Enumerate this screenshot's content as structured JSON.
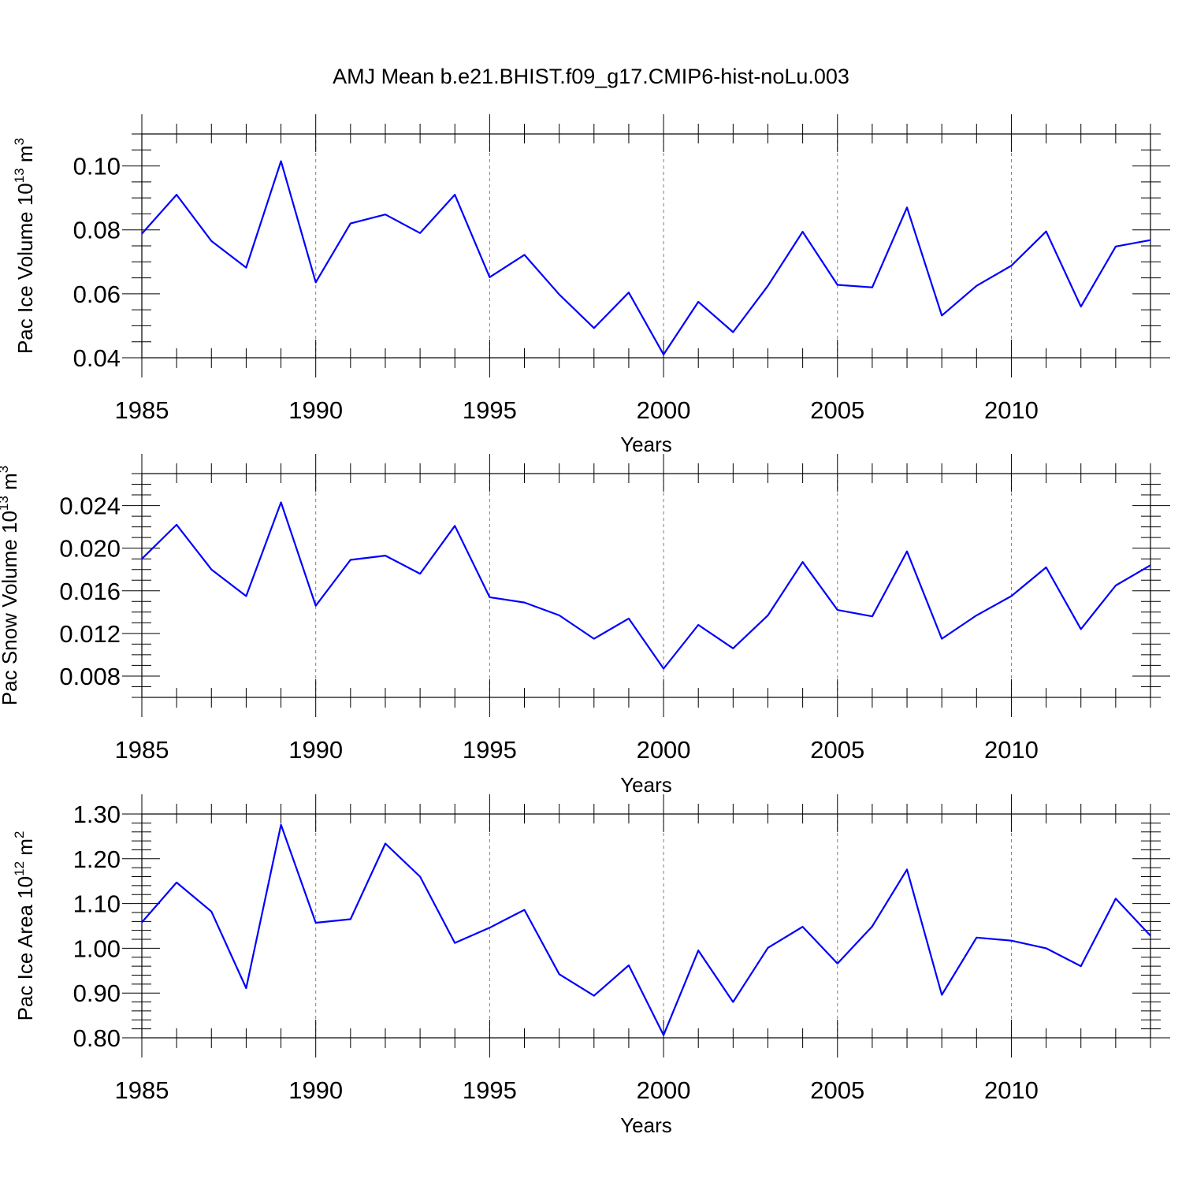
{
  "page": {
    "title": "AMJ Mean b.e21.BHIST.f09_g17.CMIP6-hist-noLu.003",
    "line_color": "#0000ff"
  },
  "chart_data": [
    {
      "type": "line",
      "ylabel": "Pac Ice Volume 10",
      "ylabel_exp": "13",
      "ylabel_unit": " m",
      "ylabel_unit_exp": "3",
      "xlabel": "Years",
      "xlim": [
        1985,
        2014
      ],
      "ylim": [
        0.04,
        0.11
      ],
      "xticks": [
        1985,
        1990,
        1995,
        2000,
        2005,
        2010
      ],
      "xtick_labels": [
        "1985",
        "1990",
        "1995",
        "2000",
        "2005",
        "2010"
      ],
      "yticks": [
        0.04,
        0.06,
        0.08,
        0.1
      ],
      "ytick_labels": [
        "0.04",
        "0.06",
        "0.08",
        "0.10"
      ],
      "y_minor_step": 0.005,
      "x": [
        1985,
        1986,
        1987,
        1988,
        1989,
        1990,
        1991,
        1992,
        1993,
        1994,
        1995,
        1996,
        1997,
        1998,
        1999,
        2000,
        2001,
        2002,
        2003,
        2004,
        2005,
        2006,
        2007,
        2008,
        2009,
        2010,
        2011,
        2012,
        2013,
        2014
      ],
      "values": [
        0.0788,
        0.091,
        0.0765,
        0.0682,
        0.1015,
        0.0636,
        0.082,
        0.0848,
        0.079,
        0.091,
        0.0652,
        0.0722,
        0.0598,
        0.0493,
        0.0604,
        0.041,
        0.0575,
        0.048,
        0.0625,
        0.0794,
        0.0628,
        0.062,
        0.087,
        0.0532,
        0.0625,
        0.0688,
        0.0795,
        0.056,
        0.0748,
        0.0768
      ]
    },
    {
      "type": "line",
      "ylabel": "Pac Snow Volume 10",
      "ylabel_exp": "13",
      "ylabel_unit": " m",
      "ylabel_unit_exp": "3",
      "xlabel": "Years",
      "xlim": [
        1985,
        2014
      ],
      "ylim": [
        0.006,
        0.027
      ],
      "xticks": [
        1985,
        1990,
        1995,
        2000,
        2005,
        2010
      ],
      "xtick_labels": [
        "1985",
        "1990",
        "1995",
        "2000",
        "2005",
        "2010"
      ],
      "yticks": [
        0.008,
        0.012,
        0.016,
        0.02,
        0.024
      ],
      "ytick_labels": [
        "0.008",
        "0.012",
        "0.016",
        "0.020",
        "0.024"
      ],
      "y_minor_step": 0.001,
      "x": [
        1985,
        1986,
        1987,
        1988,
        1989,
        1990,
        1991,
        1992,
        1993,
        1994,
        1995,
        1996,
        1997,
        1998,
        1999,
        2000,
        2001,
        2002,
        2003,
        2004,
        2005,
        2006,
        2007,
        2008,
        2009,
        2010,
        2011,
        2012,
        2013,
        2014
      ],
      "values": [
        0.019,
        0.0222,
        0.018,
        0.0155,
        0.0243,
        0.0146,
        0.0189,
        0.0193,
        0.0176,
        0.0221,
        0.0154,
        0.0149,
        0.0137,
        0.0115,
        0.0134,
        0.0087,
        0.0128,
        0.0106,
        0.0137,
        0.0187,
        0.0142,
        0.0136,
        0.0197,
        0.0115,
        0.0137,
        0.0155,
        0.0182,
        0.0124,
        0.0165,
        0.0184
      ]
    },
    {
      "type": "line",
      "ylabel": "Pac Ice Area 10",
      "ylabel_exp": "12",
      "ylabel_unit": " m",
      "ylabel_unit_exp": "2",
      "xlabel": "Years",
      "xlim": [
        1985,
        2014
      ],
      "ylim": [
        0.8,
        1.3
      ],
      "xticks": [
        1985,
        1990,
        1995,
        2000,
        2005,
        2010
      ],
      "xtick_labels": [
        "1985",
        "1990",
        "1995",
        "2000",
        "2005",
        "2010"
      ],
      "yticks": [
        0.8,
        0.9,
        1.0,
        1.1,
        1.2,
        1.3
      ],
      "ytick_labels": [
        "0.80",
        "0.90",
        "1.00",
        "1.10",
        "1.20",
        "1.30"
      ],
      "y_minor_step": 0.02,
      "x": [
        1985,
        1986,
        1987,
        1988,
        1989,
        1990,
        1991,
        1992,
        1993,
        1994,
        1995,
        1996,
        1997,
        1998,
        1999,
        2000,
        2001,
        2002,
        2003,
        2004,
        2005,
        2006,
        2007,
        2008,
        2009,
        2010,
        2011,
        2012,
        2013,
        2014
      ],
      "values": [
        1.058,
        1.147,
        1.082,
        0.911,
        1.276,
        1.057,
        1.065,
        1.234,
        1.16,
        1.012,
        1.046,
        1.086,
        0.942,
        0.894,
        0.962,
        0.806,
        0.995,
        0.88,
        1.001,
        1.048,
        0.966,
        1.049,
        1.176,
        0.896,
        1.024,
        1.017,
        1.0,
        0.96,
        1.111,
        1.028
      ]
    }
  ]
}
